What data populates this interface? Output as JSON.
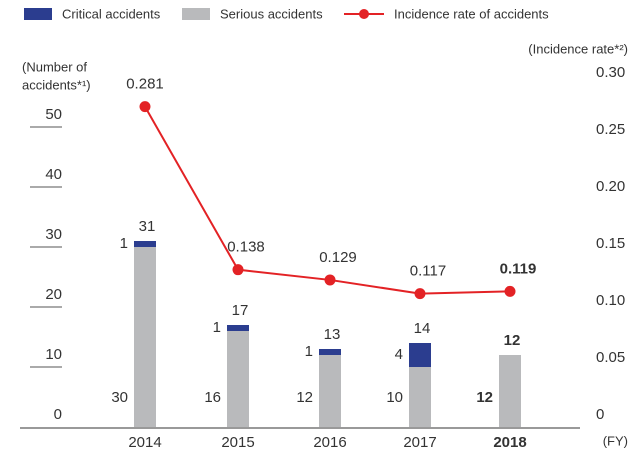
{
  "chart_data": {
    "type": "bar_line",
    "categories": [
      "2014",
      "2015",
      "2016",
      "2017",
      "2018"
    ],
    "highlight": "2018",
    "series": [
      {
        "name": "Critical accidents",
        "color": "#2b3d8f",
        "values": [
          1,
          1,
          1,
          4,
          null
        ],
        "kind": "bar"
      },
      {
        "name": "Serious accidents",
        "color": "#b9babc",
        "values": [
          30,
          16,
          12,
          10,
          12
        ],
        "kind": "bar"
      },
      {
        "name": "Incidence rate of accidents",
        "color": "#e32225",
        "values": [
          0.281,
          0.138,
          0.129,
          0.117,
          0.119
        ],
        "kind": "line",
        "axis": "y2"
      }
    ],
    "totals": [
      31,
      17,
      13,
      14,
      12
    ],
    "ylabel": [
      "(Number of",
      "accidents*¹)"
    ],
    "y2label": "(Incidence rate*²)",
    "xlabel": "(FY)",
    "ylim": [
      0,
      57
    ],
    "yticks": [
      0,
      10,
      20,
      30,
      40,
      50
    ],
    "y2lim": [
      0,
      0.3
    ],
    "y2ticks": [
      0,
      {
        "value": 0.05,
        "label": "0.05"
      },
      {
        "value": 0.1,
        "label": "0.10"
      },
      {
        "value": 0.15,
        "label": "0.15"
      },
      {
        "value": 0.2,
        "label": "0.20"
      },
      {
        "value": 0.25,
        "label": "0.25"
      },
      {
        "value": 0.3,
        "label": "0.30"
      }
    ]
  }
}
